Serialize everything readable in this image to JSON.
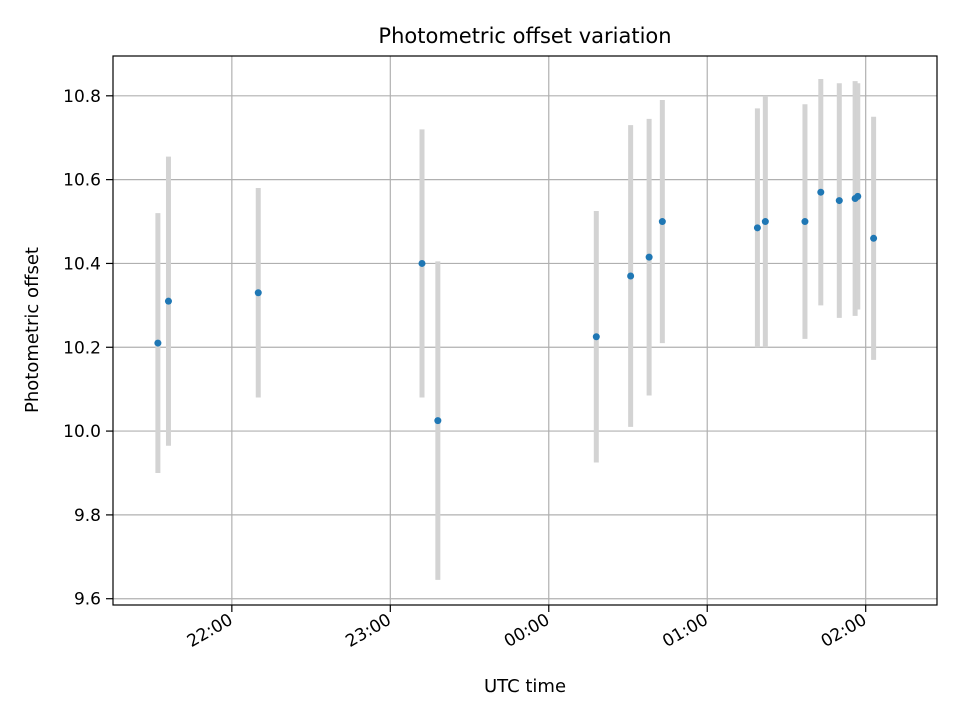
{
  "chart_data": {
    "type": "scatter",
    "title": "Photometric offset variation",
    "xlabel": "UTC time",
    "ylabel": "Photometric offset",
    "x_tick_labels": [
      "22:00",
      "23:00",
      "00:00",
      "01:00",
      "02:00"
    ],
    "x_ticks_hours": [
      22,
      23,
      24,
      25,
      26
    ],
    "xlim_hours": [
      21.25,
      26.45
    ],
    "y_ticks": [
      9.6,
      9.8,
      10.0,
      10.2,
      10.4,
      10.6,
      10.8
    ],
    "y_tick_labels": [
      "9.6",
      "9.8",
      "10.0",
      "10.2",
      "10.4",
      "10.6",
      "10.8"
    ],
    "ylim": [
      9.585,
      10.895
    ],
    "grid": true,
    "points": [
      {
        "x": "21:32",
        "y": 10.21,
        "err": 0.31
      },
      {
        "x": "21:36",
        "y": 10.31,
        "err": 0.345
      },
      {
        "x": "22:10",
        "y": 10.33,
        "err": 0.25
      },
      {
        "x": "23:12",
        "y": 10.4,
        "err": 0.32
      },
      {
        "x": "23:18",
        "y": 10.025,
        "err": 0.38
      },
      {
        "x": "00:18",
        "y": 10.225,
        "err": 0.3
      },
      {
        "x": "00:31",
        "y": 10.37,
        "err": 0.36
      },
      {
        "x": "00:38",
        "y": 10.415,
        "err": 0.33
      },
      {
        "x": "00:43",
        "y": 10.5,
        "err": 0.29
      },
      {
        "x": "01:19",
        "y": 10.485,
        "err": 0.285
      },
      {
        "x": "01:22",
        "y": 10.5,
        "err": 0.3
      },
      {
        "x": "01:37",
        "y": 10.5,
        "err": 0.28
      },
      {
        "x": "01:43",
        "y": 10.57,
        "err": 0.27
      },
      {
        "x": "01:50",
        "y": 10.55,
        "err": 0.28
      },
      {
        "x": "01:56",
        "y": 10.555,
        "err": 0.28
      },
      {
        "x": "01:57",
        "y": 10.56,
        "err": 0.27
      },
      {
        "x": "02:03",
        "y": 10.46,
        "err": 0.29
      }
    ],
    "colors": {
      "point": "#1f77b4",
      "errorbar": "#d3d3d3",
      "grid": "#b0b0b0"
    }
  }
}
